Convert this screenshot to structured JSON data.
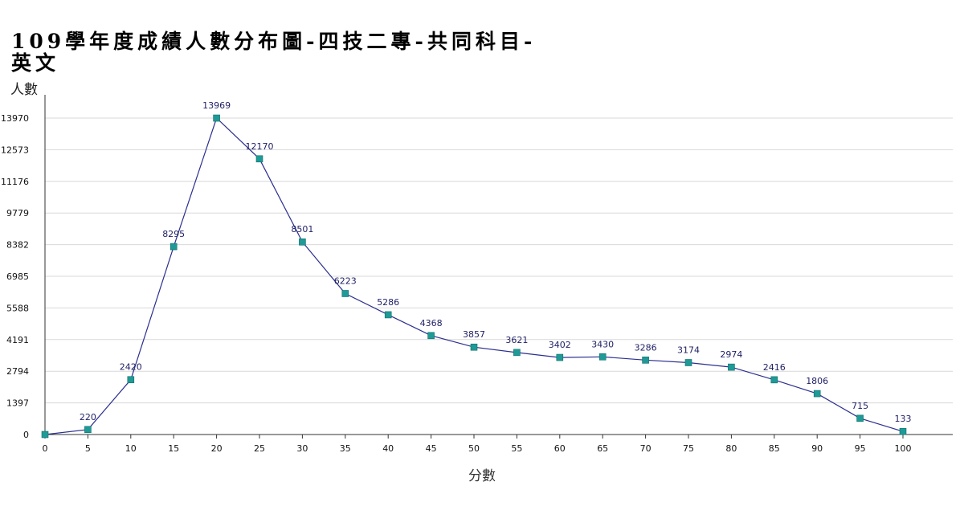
{
  "chart_data": {
    "type": "line",
    "title": "109學年度成績人數分布圖-四技二專-共同科目-英文",
    "xlabel": "分數",
    "ylabel": "人數",
    "x": [
      0,
      5,
      10,
      15,
      20,
      25,
      30,
      35,
      40,
      45,
      50,
      55,
      60,
      65,
      70,
      75,
      80,
      85,
      90,
      95,
      100
    ],
    "values": [
      0,
      220,
      2420,
      8295,
      13969,
      12170,
      8501,
      6223,
      5286,
      4368,
      3857,
      3621,
      3402,
      3430,
      3286,
      3174,
      2974,
      2416,
      1806,
      715,
      133
    ],
    "data_labels": [
      "",
      "220",
      "2420",
      "8295",
      "13969",
      "12170",
      "8501",
      "6223",
      "5286",
      "4368",
      "3857",
      "3621",
      "3402",
      "3430",
      "3286",
      "3174",
      "2974",
      "2416",
      "1806",
      "715",
      "133"
    ],
    "y_ticks": [
      0,
      1397,
      2794,
      4191,
      5588,
      6985,
      8382,
      9779,
      11176,
      12573,
      13970
    ],
    "x_ticks": [
      0,
      5,
      10,
      15,
      20,
      25,
      30,
      35,
      40,
      45,
      50,
      55,
      60,
      65,
      70,
      75,
      80,
      85,
      90,
      95,
      100
    ],
    "ylim": [
      0,
      13970
    ],
    "xlim": [
      0,
      100
    ],
    "grid": true,
    "legend": "none",
    "colors": {
      "line": "#2b2f8f",
      "marker": "#1f9a96",
      "grid": "#d8d8d8",
      "axis": "#333333"
    }
  }
}
